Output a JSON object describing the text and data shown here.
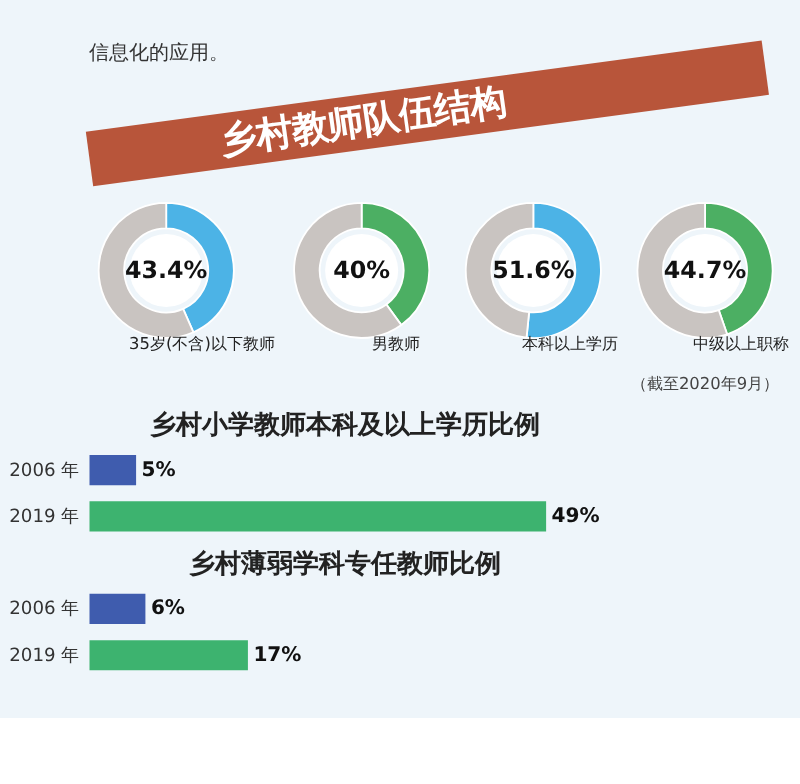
{
  "chart_data": [
    {
      "type": "other",
      "annotations": [
        "信息化的应用。"
      ],
      "title": "乡村教师队伍结构"
    },
    {
      "type": "donut",
      "categories": [
        "35岁(不含)以下教师",
        null
      ],
      "values": [
        43.4,
        56.6
      ],
      "colors": [
        "#4cb3e6",
        "#c9c4c1"
      ],
      "value_labels": [
        "43.4%",
        null
      ]
    },
    {
      "type": "donut",
      "categories": [
        "男教师",
        null
      ],
      "values": [
        40,
        60
      ],
      "colors": [
        "#4caf63",
        "#c9c4c1"
      ],
      "value_labels": [
        "40%",
        null
      ]
    },
    {
      "type": "donut",
      "categories": [
        "本科以上学历",
        null
      ],
      "values": [
        51.6,
        48.4
      ],
      "colors": [
        "#4cb3e6",
        "#c9c4c1"
      ],
      "value_labels": [
        "51.6%",
        null
      ]
    },
    {
      "type": "donut",
      "categories": [
        "中级以上职称",
        null
      ],
      "values": [
        44.7,
        55.3
      ],
      "colors": [
        "#4caf63",
        "#c9c4c1"
      ],
      "value_labels": [
        "44.7%",
        null
      ],
      "annotations": [
        "（截至2020年9月）"
      ]
    },
    {
      "type": "bar",
      "orientation": "horizontal",
      "title": "乡村小学教师本科及以上学历比例",
      "categories": [
        "2006 年",
        "2019 年"
      ],
      "values": [
        5,
        49
      ],
      "colors": [
        "#3f5cae",
        "#3db36f"
      ],
      "value_labels": [
        "5%",
        "49%"
      ]
    },
    {
      "type": "bar",
      "orientation": "horizontal",
      "title": "乡村薄弱学科专任教师比例",
      "categories": [
        "2006 年",
        "2019 年"
      ],
      "values": [
        6,
        17
      ],
      "colors": [
        "#3f5cae",
        "#3db36f"
      ],
      "value_labels": [
        "6%",
        "17%"
      ]
    }
  ]
}
